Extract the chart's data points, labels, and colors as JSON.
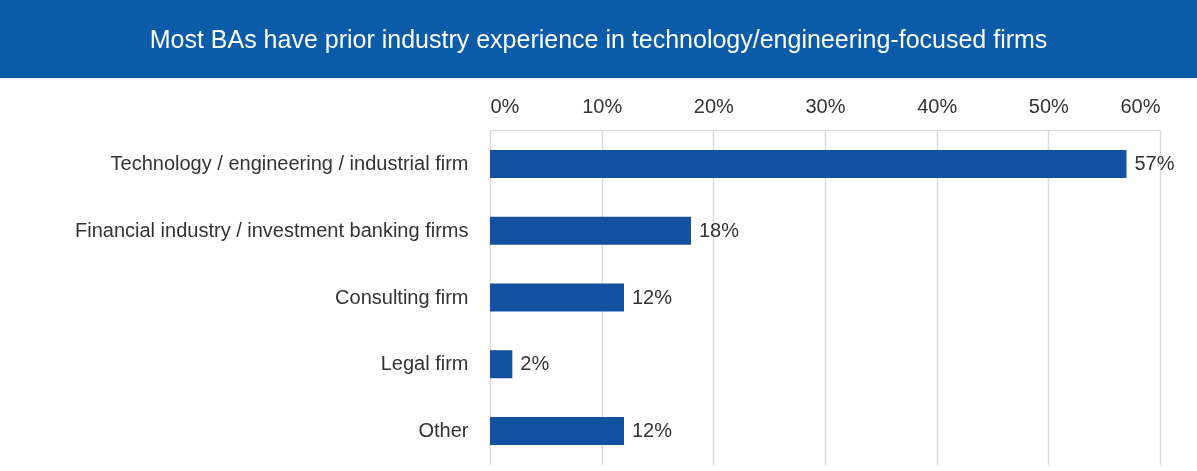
{
  "chart_data": {
    "type": "bar",
    "orientation": "horizontal",
    "title": "Most BAs have prior industry experience in technology/engineering-focused firms",
    "categories": [
      "Technology / engineering / industrial firm",
      "Financial industry /  investment banking firms",
      "Consulting firm",
      "Legal firm",
      "Other"
    ],
    "values": [
      57,
      18,
      12,
      2,
      12
    ],
    "color": "#1450a0",
    "value_labels": [
      "57%",
      "18%",
      "12%",
      "2%",
      "12%"
    ],
    "xlim": [
      0,
      60
    ],
    "xticks": [
      {
        "value": 0,
        "label": "0%"
      },
      {
        "value": 10,
        "label": "10%"
      },
      {
        "value": 20,
        "label": "20%"
      },
      {
        "value": 30,
        "label": "30%"
      },
      {
        "value": 40,
        "label": "40%"
      },
      {
        "value": 50,
        "label": "50%"
      },
      {
        "value": 60,
        "label": "60%"
      }
    ],
    "grid": "x"
  }
}
